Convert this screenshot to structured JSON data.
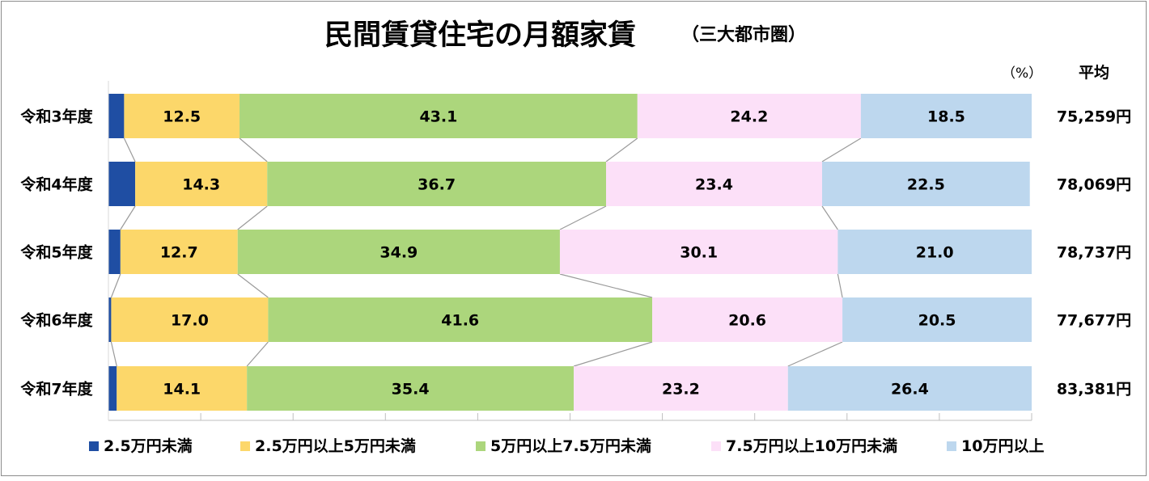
{
  "chart_data": {
    "type": "bar",
    "orientation": "horizontal-stacked-100",
    "title": "民間賃貸住宅の月額家賃",
    "subtitle": "（三大都市圏）",
    "unit_label": "（%）",
    "average_header": "平均",
    "categories": [
      "令和3年度",
      "令和4年度",
      "令和5年度",
      "令和6年度",
      "令和7年度"
    ],
    "series": [
      {
        "name": "2.5万円未満",
        "color": "#1f4ea3",
        "values": [
          1.7,
          2.9,
          1.3,
          0.3,
          0.9
        ]
      },
      {
        "name": "2.5万円以上5万円未満",
        "color": "#fcd76a",
        "values": [
          12.5,
          14.3,
          12.7,
          17.0,
          14.1
        ]
      },
      {
        "name": "5万円以上7.5万円未満",
        "color": "#acd67c",
        "values": [
          43.1,
          36.7,
          34.9,
          41.6,
          35.4
        ]
      },
      {
        "name": "7.5万円以上10万円未満",
        "color": "#fce0f8",
        "values": [
          24.2,
          23.4,
          30.1,
          20.6,
          23.2
        ]
      },
      {
        "name": "10万円以上",
        "color": "#bdd7ee",
        "values": [
          18.5,
          22.5,
          21.0,
          20.5,
          26.4
        ]
      }
    ],
    "data_labels": [
      [
        "",
        "12.5",
        "43.1",
        "24.2",
        "18.5"
      ],
      [
        "",
        "14.3",
        "36.7",
        "23.4",
        "22.5"
      ],
      [
        "",
        "12.7",
        "34.9",
        "30.1",
        "21.0"
      ],
      [
        "",
        "17.0",
        "41.6",
        "20.6",
        "20.5"
      ],
      [
        "",
        "14.1",
        "35.4",
        "23.2",
        "26.4"
      ]
    ],
    "averages": [
      "75,259円",
      "78,069円",
      "78,737円",
      "77,677円",
      "83,381円"
    ],
    "xlim": [
      0,
      100
    ],
    "legend_position": "bottom",
    "series_lines": true,
    "grid": false
  }
}
